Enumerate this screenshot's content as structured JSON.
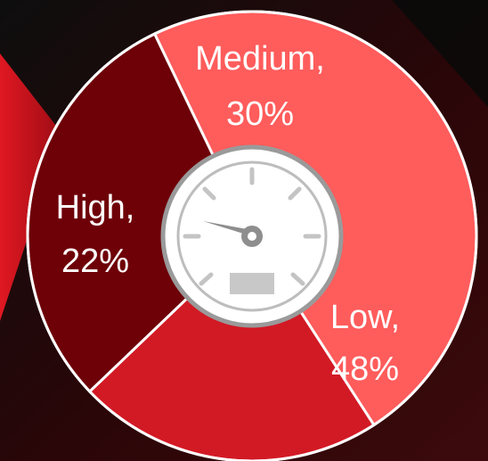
{
  "chart_data": {
    "type": "pie",
    "slices": [
      {
        "label": "Medium,",
        "value_label": "30%",
        "value": 30,
        "color": "#6e0008"
      },
      {
        "label": "Low,",
        "value_label": "48%",
        "value": 48,
        "color": "#ff5c5c"
      },
      {
        "label": "High,",
        "value_label": "22%",
        "value": 22,
        "color": "#d21a25"
      }
    ]
  },
  "center_icon": "speedometer-icon",
  "colors": {
    "background_dark": "#141414",
    "background_red": "#c8141e",
    "border": "#ffffff",
    "gauge_fill": "#ffffff",
    "gauge_stroke": "#9a9a9a"
  }
}
